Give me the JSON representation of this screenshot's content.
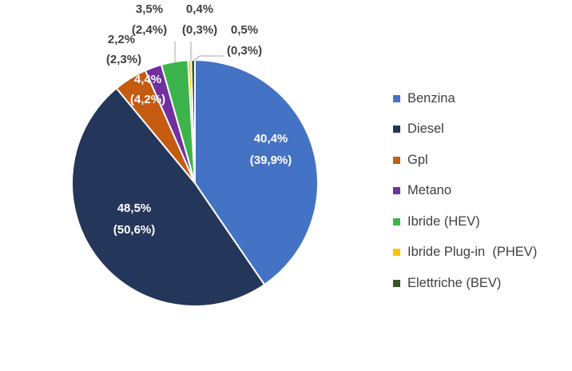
{
  "chart_data": {
    "type": "pie",
    "slices": [
      {
        "name": "Benzina",
        "value": 40.4,
        "secondary": 39.9,
        "label": "40,4%",
        "sublabel": "(39,9%)",
        "color": "#4472c4"
      },
      {
        "name": "Diesel",
        "value": 48.5,
        "secondary": 50.6,
        "label": "48,5%",
        "sublabel": "(50,6%)",
        "color": "#243659"
      },
      {
        "name": "Gpl",
        "value": 4.4,
        "secondary": 4.2,
        "label": "4,4%",
        "sublabel": "(4,2%)",
        "color": "#c55a11"
      },
      {
        "name": "Metano",
        "value": 2.2,
        "secondary": 2.3,
        "label": "2,2%",
        "sublabel": "(2,3%)",
        "color": "#7030a0"
      },
      {
        "name": "Ibride (HEV)",
        "value": 3.5,
        "secondary": 2.4,
        "label": "3,5%",
        "sublabel": "(2,4%)",
        "color": "#3cb44b"
      },
      {
        "name": "Ibride Plug-in  (PHEV)",
        "value": 0.4,
        "secondary": 0.3,
        "label": "0,4%",
        "sublabel": "(0,3%)",
        "color": "#ffc000"
      },
      {
        "name": "Elettriche (BEV)",
        "value": 0.5,
        "secondary": 0.3,
        "label": "0,5%",
        "sublabel": "(0,3%)",
        "color": "#375623"
      }
    ],
    "legend_position": "right"
  }
}
